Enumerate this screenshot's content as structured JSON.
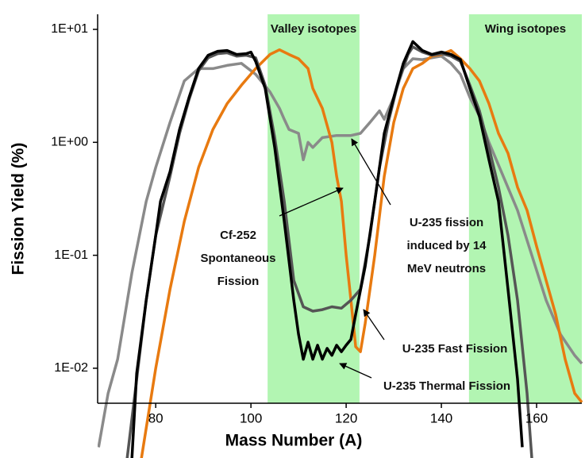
{
  "chart_data": {
    "type": "line",
    "x_label": "Mass Number (A)",
    "y_label": "Fission Yield (%)",
    "log_y": true,
    "xlim": [
      67.8,
      169.5
    ],
    "ylim": [
      0.0049,
      13.6
    ],
    "xticks": [
      80,
      100,
      120,
      140,
      160
    ],
    "yticks": [
      {
        "value": 0.01,
        "label": "1E-02"
      },
      {
        "value": 0.1,
        "label": "1E-01"
      },
      {
        "value": 1,
        "label": "1E+00"
      },
      {
        "value": 10,
        "label": "1E+01"
      }
    ],
    "bands": [
      {
        "label": "Valley isotopes",
        "range": [
          103.5,
          122.8
        ],
        "color": "#b2f5b2"
      },
      {
        "label": "Wing isotopes",
        "range": [
          145.8,
          169.5
        ],
        "color": "#b2f5b2"
      }
    ],
    "series": [
      {
        "name": "U-235 fission induced by 14 MeV neutrons",
        "color": "#8a8a8a",
        "x": [
          68,
          70,
          72,
          75,
          78,
          80,
          83,
          86,
          89,
          92,
          95,
          98,
          101,
          104,
          106,
          107,
          108,
          110,
          111,
          112,
          113,
          115,
          118,
          121,
          123,
          125,
          127,
          128,
          130,
          132,
          134,
          136,
          138,
          140,
          142,
          144,
          146,
          148,
          150,
          153,
          156,
          159,
          162,
          165,
          168,
          169.5
        ],
        "values": [
          0.002,
          0.006,
          0.012,
          0.07,
          0.3,
          0.6,
          1.5,
          3.5,
          4.5,
          4.5,
          4.8,
          5.0,
          4.0,
          2.8,
          2.0,
          1.6,
          1.3,
          1.2,
          0.7,
          1.0,
          0.9,
          1.1,
          1.15,
          1.15,
          1.2,
          1.5,
          1.9,
          1.6,
          2.5,
          4.5,
          5.5,
          5.4,
          5.6,
          5.8,
          5.0,
          4.0,
          2.5,
          1.7,
          1.0,
          0.5,
          0.25,
          0.1,
          0.04,
          0.02,
          0.013,
          0.011
        ]
      },
      {
        "name": "Cf-252 Spontaneous Fission",
        "color": "#e87a10",
        "x": [
          77,
          80,
          83,
          86,
          89,
          92,
          95,
          98,
          101,
          104,
          106,
          108,
          110,
          112,
          113,
          115,
          117,
          118,
          119,
          120,
          121,
          122,
          123,
          124,
          126,
          128,
          130,
          132,
          134,
          136,
          138,
          140,
          142,
          144,
          146,
          148,
          150,
          152,
          154,
          156,
          158,
          160,
          162,
          164,
          166,
          168,
          169.5
        ],
        "values": [
          0.0016,
          0.01,
          0.05,
          0.2,
          0.6,
          1.3,
          2.2,
          3.2,
          4.5,
          6.0,
          6.6,
          6.0,
          5.5,
          4.5,
          3.0,
          2.0,
          1.0,
          0.5,
          0.3,
          0.1,
          0.04,
          0.0155,
          0.014,
          0.025,
          0.1,
          0.5,
          1.5,
          3.0,
          4.5,
          5.0,
          5.8,
          6.0,
          6.5,
          5.5,
          4.5,
          3.5,
          2.2,
          1.2,
          0.8,
          0.4,
          0.25,
          0.12,
          0.06,
          0.03,
          0.012,
          0.006,
          0.005
        ]
      },
      {
        "name": "U-235 Fast Fission",
        "color": "#555555",
        "x": [
          74,
          76,
          78,
          80,
          83,
          85,
          87,
          89,
          91,
          93,
          95,
          97,
          99,
          101,
          103,
          105,
          107,
          109,
          111,
          113,
          115,
          117,
          119,
          121,
          123,
          125,
          127,
          129,
          131,
          133,
          134,
          136,
          138,
          140,
          142,
          144,
          146,
          148,
          150,
          152,
          154,
          156,
          158,
          159
        ],
        "values": [
          0.0016,
          0.008,
          0.04,
          0.15,
          0.5,
          1.2,
          2.4,
          4.3,
          5.6,
          6.1,
          6.2,
          5.8,
          5.9,
          5.6,
          3.2,
          1.1,
          0.3,
          0.06,
          0.035,
          0.032,
          0.033,
          0.035,
          0.034,
          0.04,
          0.05,
          0.15,
          0.6,
          1.6,
          3.5,
          6.0,
          7.0,
          6.3,
          5.9,
          6.1,
          5.8,
          5.2,
          3.2,
          1.9,
          0.9,
          0.4,
          0.15,
          0.04,
          0.006,
          0.0016
        ]
      },
      {
        "name": "U-235 Thermal Fission",
        "color": "#000000",
        "x": [
          75,
          76,
          78,
          80,
          81,
          83,
          85,
          87,
          89,
          91,
          93,
          95,
          97,
          99,
          100,
          101,
          103,
          105,
          107,
          109,
          110,
          111,
          112,
          113,
          114,
          115,
          116,
          117,
          118,
          119,
          120,
          121,
          122,
          124,
          126,
          128,
          130,
          132,
          134,
          136,
          138,
          140,
          142,
          144,
          146,
          148,
          150,
          152,
          154,
          155,
          156,
          157
        ],
        "values": [
          0.0016,
          0.009,
          0.04,
          0.15,
          0.3,
          0.55,
          1.3,
          2.5,
          4.5,
          5.9,
          6.4,
          6.5,
          6.0,
          6.1,
          6.3,
          5.2,
          3.0,
          0.9,
          0.2,
          0.04,
          0.02,
          0.012,
          0.017,
          0.012,
          0.016,
          0.012,
          0.015,
          0.013,
          0.016,
          0.014,
          0.016,
          0.018,
          0.03,
          0.08,
          0.3,
          1.2,
          2.5,
          5.0,
          7.8,
          6.5,
          6.0,
          6.3,
          6.0,
          5.4,
          3.0,
          1.7,
          0.7,
          0.3,
          0.05,
          0.02,
          0.008,
          0.002
        ]
      }
    ]
  }
}
